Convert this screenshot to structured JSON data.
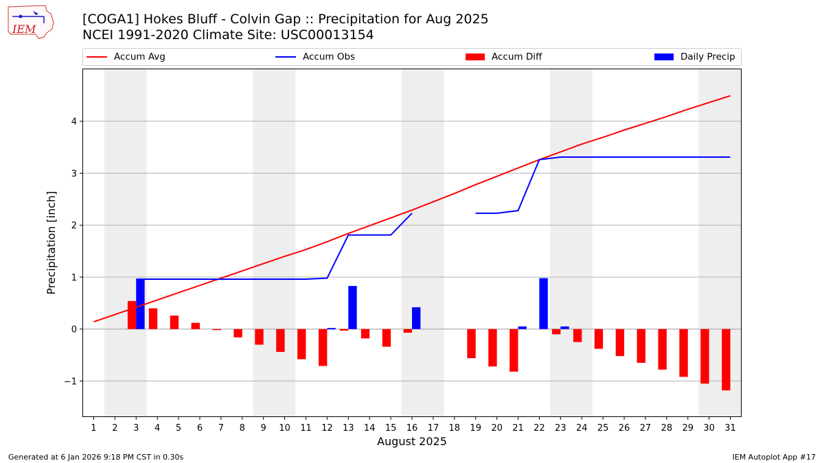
{
  "header": {
    "logo_text": "IEM",
    "title_line1": "[COGA1] Hokes Bluff - Colvin Gap :: Precipitation for Aug 2025",
    "title_line2": "NCEI 1991-2020 Climate Site: USC00013154"
  },
  "legend": {
    "accum_avg": "Accum Avg",
    "accum_obs": "Accum Obs",
    "accum_diff": "Accum Diff",
    "daily_precip": "Daily Precip"
  },
  "colors": {
    "avg_line": "#ff0000",
    "obs_line": "#0000ff",
    "diff_bar": "#ff0000",
    "precip_bar": "#0000ff",
    "weekend_band": "#eeeeee",
    "grid": "#b0b0b0"
  },
  "chart_data": {
    "type": "bar",
    "title": "[COGA1] Hokes Bluff - Colvin Gap :: Precipitation for Aug 2025",
    "subtitle": "NCEI 1991-2020 Climate Site: USC00013154",
    "xlabel": "August 2025",
    "ylabel": "Precipitation [inch]",
    "xlim": [
      0.5,
      31.5
    ],
    "ylim": [
      -1.68,
      5.0
    ],
    "yticks": [
      -1,
      0,
      1,
      2,
      3,
      4
    ],
    "ytick_labels": [
      "−1",
      "0",
      "1",
      "2",
      "3",
      "4"
    ],
    "grid": "y",
    "legend_position": "top",
    "categories": [
      1,
      2,
      3,
      4,
      5,
      6,
      7,
      8,
      9,
      10,
      11,
      12,
      13,
      14,
      15,
      16,
      17,
      18,
      19,
      20,
      21,
      22,
      23,
      24,
      25,
      26,
      27,
      28,
      29,
      30,
      31
    ],
    "weekend_bands": [
      [
        2,
        3
      ],
      [
        9,
        10
      ],
      [
        16,
        17
      ],
      [
        23,
        24
      ],
      [
        30,
        31
      ]
    ],
    "series": [
      {
        "name": "Accum Avg",
        "kind": "line",
        "values": [
          0.14,
          0.28,
          0.42,
          0.56,
          0.7,
          0.84,
          0.98,
          1.12,
          1.26,
          1.4,
          1.53,
          1.68,
          1.84,
          1.99,
          2.14,
          2.29,
          2.45,
          2.61,
          2.78,
          2.94,
          3.1,
          3.26,
          3.41,
          3.56,
          3.69,
          3.83,
          3.96,
          4.09,
          4.23,
          4.36,
          4.49
        ]
      },
      {
        "name": "Accum Obs",
        "kind": "line",
        "values": [
          null,
          null,
          0.96,
          0.96,
          0.96,
          0.96,
          0.96,
          0.96,
          0.96,
          0.96,
          0.96,
          0.98,
          1.81,
          1.81,
          1.81,
          2.23,
          null,
          null,
          2.23,
          2.23,
          2.28,
          3.26,
          3.31,
          3.31,
          3.31,
          3.31,
          3.31,
          3.31,
          3.31,
          3.31,
          3.31
        ]
      },
      {
        "name": "Accum Diff",
        "kind": "bar",
        "values": [
          null,
          null,
          0.54,
          0.4,
          0.26,
          0.12,
          -0.02,
          -0.16,
          -0.3,
          -0.44,
          -0.58,
          -0.71,
          -0.03,
          -0.18,
          -0.34,
          -0.07,
          null,
          null,
          -0.56,
          -0.72,
          -0.82,
          0.0,
          -0.1,
          -0.25,
          -0.38,
          -0.52,
          -0.65,
          -0.78,
          -0.92,
          -1.05,
          -1.18
        ]
      },
      {
        "name": "Daily Precip",
        "kind": "bar",
        "values": [
          null,
          null,
          0.96,
          0,
          0,
          0,
          0,
          0,
          0,
          0,
          0,
          0.02,
          0.83,
          0,
          0,
          0.42,
          null,
          null,
          0,
          0,
          0.05,
          0.98,
          0.05,
          0,
          0,
          0,
          0,
          0,
          0,
          0,
          0
        ]
      }
    ]
  },
  "footer": {
    "generated": "Generated at 6 Jan 2026 9:18 PM CST in 0.30s",
    "app": "IEM Autoplot App #17"
  }
}
